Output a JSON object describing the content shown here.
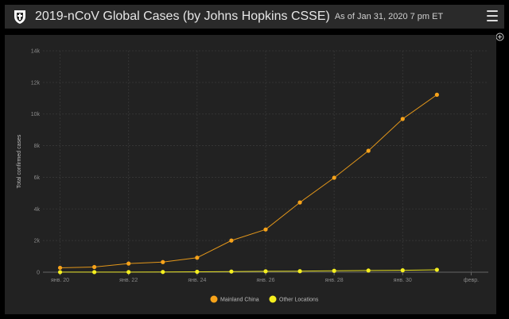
{
  "header": {
    "title": "2019-nCoV Global Cases (by Johns Hopkins CSSE)",
    "as_of": "As of Jan 31, 2020 7 pm ET",
    "logo_icon": "jhu-shield-icon",
    "menu_icon": "hamburger-menu-icon"
  },
  "panel": {
    "zoom_icon": "zoom-expand-icon"
  },
  "chart_data": {
    "type": "line",
    "xlabel": "",
    "ylabel": "Total confirmed cases",
    "ylim": [
      0,
      14000
    ],
    "yticks": [
      0,
      2000,
      4000,
      6000,
      8000,
      10000,
      12000,
      14000
    ],
    "ytick_labels": [
      "0",
      "2k",
      "4k",
      "6k",
      "8k",
      "10k",
      "12k",
      "14k"
    ],
    "xlim": [
      19.5,
      32.5
    ],
    "xticks": [
      20,
      22,
      24,
      26,
      28,
      30,
      32
    ],
    "xtick_labels": [
      "янв. 20",
      "янв. 22",
      "янв. 24",
      "янв. 26",
      "янв. 28",
      "янв. 30",
      "февр."
    ],
    "grid": true,
    "legend_position": "bottom-center",
    "series": [
      {
        "name": "Mainland China",
        "color": "#f7a31a",
        "x": [
          20,
          21,
          22,
          23,
          24,
          25,
          26,
          27,
          28,
          29,
          30,
          31
        ],
        "values": [
          278,
          326,
          547,
          639,
          916,
          2000,
          2700,
          4409,
          5970,
          7678,
          9692,
          11221
        ]
      },
      {
        "name": "Other Locations",
        "color": "#f5ef1f",
        "x": [
          20,
          21,
          22,
          23,
          24,
          25,
          26,
          27,
          28,
          29,
          30,
          31
        ],
        "values": [
          4,
          6,
          8,
          14,
          25,
          40,
          57,
          64,
          87,
          105,
          118,
          153
        ]
      }
    ]
  }
}
